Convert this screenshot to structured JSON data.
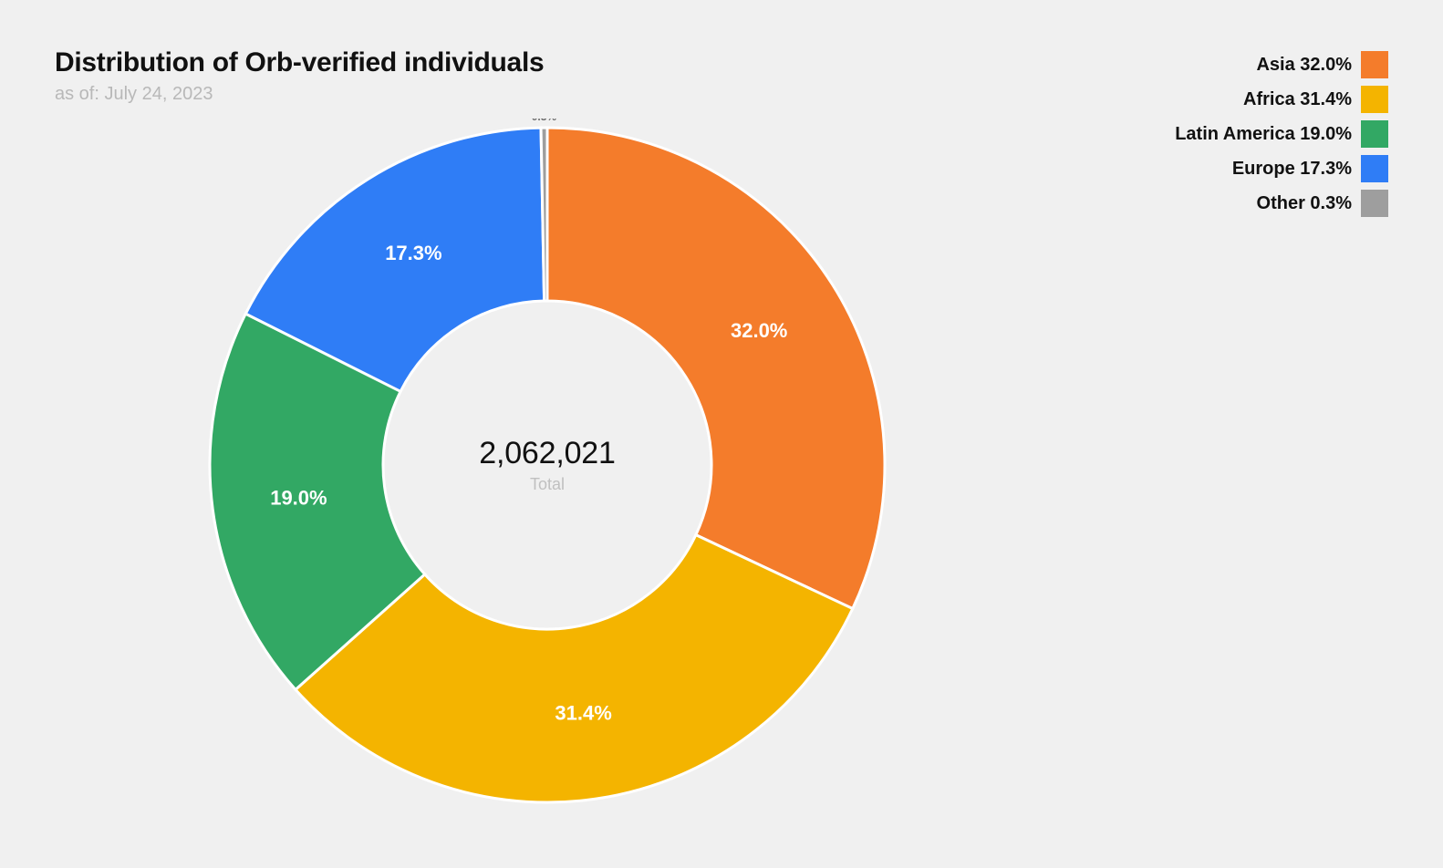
{
  "header": {
    "title": "Distribution of Orb-verified individuals",
    "subtitle": "as of: July 24, 2023"
  },
  "chart": {
    "type": "donut",
    "background_color": "#f0f0f0",
    "stroke_color": "#ffffff",
    "stroke_width": 3,
    "outer_radius": 370,
    "inner_radius": 180,
    "center_value": "2,062,021",
    "center_label": "Total",
    "center_value_fontsize": 34,
    "center_label_fontsize": 18,
    "center_value_color": "#111111",
    "center_label_color": "#c0c0c0",
    "slice_label_fontsize": 22,
    "slice_label_color": "#ffffff",
    "tiny_label_fontsize": 12,
    "tiny_label_color": "#6a6a6a",
    "title_fontsize": 30,
    "subtitle_fontsize": 20,
    "slices": [
      {
        "name": "Asia",
        "value": 32.0,
        "label": "32.0%",
        "color": "#f47c2b"
      },
      {
        "name": "Africa",
        "value": 31.4,
        "label": "31.4%",
        "color": "#f4b400"
      },
      {
        "name": "Latin America",
        "value": 19.0,
        "label": "19.0%",
        "color": "#32a864"
      },
      {
        "name": "Europe",
        "value": 17.3,
        "label": "17.3%",
        "color": "#2f7df6"
      },
      {
        "name": "Other",
        "value": 0.3,
        "label": "0.3%",
        "color": "#9e9e9e",
        "tiny": true
      }
    ]
  },
  "legend": {
    "swatch_size": 30,
    "label_fontsize": 20,
    "items": [
      {
        "text": "Asia 32.0%",
        "color": "#f47c2b"
      },
      {
        "text": "Africa 31.4%",
        "color": "#f4b400"
      },
      {
        "text": "Latin America 19.0%",
        "color": "#32a864"
      },
      {
        "text": "Europe 17.3%",
        "color": "#2f7df6"
      },
      {
        "text": "Other 0.3%",
        "color": "#9e9e9e"
      }
    ]
  }
}
